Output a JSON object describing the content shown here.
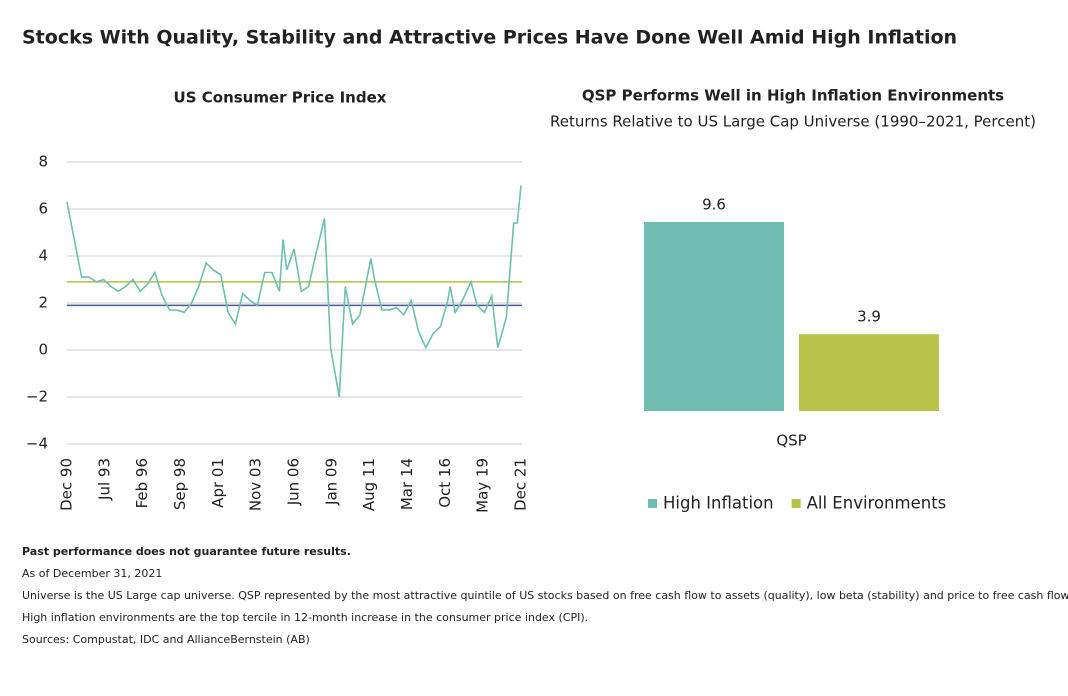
{
  "title": "Stocks With Quality, Stability and Attractive Prices Have Done Well Amid High Inflation",
  "chart_data": [
    {
      "type": "line",
      "title": "US Consumer Price Index",
      "color": "#6cc0b0",
      "x": [
        "Dec 90",
        "Jun 91",
        "Dec 91",
        "Jun 92",
        "Dec 92",
        "Jun 93",
        "Dec 93",
        "Jun 94",
        "Dec 94",
        "Jun 95",
        "Dec 95",
        "Jun 96",
        "Dec 96",
        "Jun 97",
        "Dec 97",
        "Jun 98",
        "Dec 98",
        "Jun 99",
        "Dec 99",
        "Jun 00",
        "Dec 00",
        "Jun 01",
        "Dec 01",
        "Jun 02",
        "Dec 02",
        "Jun 03",
        "Dec 03",
        "Jun 04",
        "Dec 04",
        "Jun 05",
        "Sep 05",
        "Dec 05",
        "Jun 06",
        "Dec 06",
        "Jun 07",
        "Dec 07",
        "Jul 08",
        "Dec 08",
        "Jul 09",
        "Dec 09",
        "Jun 10",
        "Dec 10",
        "Sep 11",
        "Dec 11",
        "Jun 12",
        "Dec 12",
        "Jun 13",
        "Dec 13",
        "Jun 14",
        "Dec 14",
        "Jun 15",
        "Dec 15",
        "Jun 16",
        "Dec 16",
        "Feb 17",
        "Jun 17",
        "Dec 17",
        "Jul 18",
        "Dec 18",
        "Jun 19",
        "Dec 19",
        "May 20",
        "Dec 20",
        "Jun 21",
        "Sep 21",
        "Dec 21"
      ],
      "values": [
        6.3,
        4.7,
        3.1,
        3.1,
        2.9,
        3.0,
        2.7,
        2.5,
        2.7,
        3.0,
        2.5,
        2.8,
        3.3,
        2.3,
        1.7,
        1.7,
        1.6,
        2.0,
        2.7,
        3.7,
        3.4,
        3.2,
        1.6,
        1.1,
        2.4,
        2.1,
        1.9,
        3.3,
        3.3,
        2.5,
        4.7,
        3.4,
        4.3,
        2.5,
        2.7,
        4.1,
        5.6,
        0.1,
        -2.0,
        2.7,
        1.1,
        1.5,
        3.9,
        3.0,
        1.7,
        1.7,
        1.8,
        1.5,
        2.1,
        0.8,
        0.1,
        0.7,
        1.0,
        2.1,
        2.7,
        1.6,
        2.1,
        2.9,
        1.9,
        1.6,
        2.3,
        0.1,
        1.4,
        5.4,
        5.4,
        7.0
      ],
      "xticks": [
        "Dec 90",
        "Jul 93",
        "Feb 96",
        "Sep 98",
        "Apr 01",
        "Nov 03",
        "Jun 06",
        "Jan 09",
        "Aug 11",
        "Mar 14",
        "Oct 16",
        "May 19",
        "Dec 21"
      ],
      "ylim": [
        -4,
        8
      ],
      "yticks": [
        {
          "value": -4,
          "label": "−4"
        },
        {
          "value": -2,
          "label": "−2"
        },
        0,
        2,
        4,
        6,
        8
      ],
      "grid": true,
      "reference_lines": [
        {
          "value": 2.9,
          "color": "#b5c142"
        },
        {
          "value": 1.9,
          "color": "#4b5a97"
        }
      ]
    },
    {
      "type": "bar",
      "title": "QSP Performs Well in High Inflation Environments",
      "subtitle": "Returns Relative to US Large Cap Universe (1990–2021, Percent)",
      "categories": [
        "QSP"
      ],
      "series": [
        {
          "name": "High Inflation",
          "color": "#6fbeb1",
          "values": [
            9.6
          ]
        },
        {
          "name": "All Environments",
          "color": "#b8c24a",
          "values": [
            3.9
          ]
        }
      ],
      "legend": "bottom"
    }
  ],
  "footnotes": [
    "Past performance does not guarantee future results.",
    "As of December 31, 2021",
    "Universe is the US Large cap universe. QSP represented by the most attractive quintile of US stocks based on free cash flow to assets (quality), low beta (stability) and price to free cash flow (price).",
    "High inflation environments are the top tercile in 12-month increase in the consumer price index (CPI).",
    "Sources: Compustat, IDC and AllianceBernstein (AB)"
  ]
}
